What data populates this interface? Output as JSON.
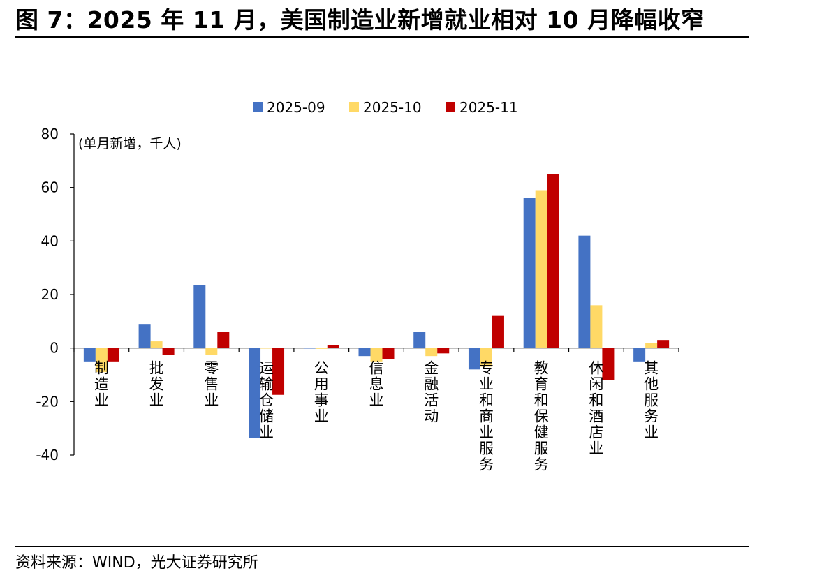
{
  "figure": {
    "title": "图 7：2025 年 11 月，美国制造业新增就业相对 10 月降幅收窄",
    "source": "资料来源：WIND，光大证券研究所"
  },
  "chart_data": {
    "type": "bar",
    "title": "",
    "ylabel": "(单月新增，千人)",
    "xlabel": "",
    "ylim": [
      -40,
      80
    ],
    "yticks": [
      80,
      60,
      40,
      20,
      0,
      -20,
      -40
    ],
    "grid": false,
    "legend_position": "top-center",
    "categories": [
      "制造业",
      "批发业",
      "零售业",
      "运输仓储业",
      "公用事业",
      "信息业",
      "金融活动",
      "专业和商业服务",
      "教育和保健服务",
      "休闲和酒店业",
      "其他服务业"
    ],
    "series": [
      {
        "name": "2025-09",
        "color": "#4472C4",
        "values": [
          -5,
          9,
          23.5,
          -33.5,
          0,
          -3,
          6,
          -8,
          56,
          42,
          -5
        ]
      },
      {
        "name": "2025-10",
        "color": "#FFD966",
        "values": [
          -9,
          2.5,
          -2.5,
          0,
          -0.3,
          -5,
          -3,
          -7,
          59,
          16,
          2
        ]
      },
      {
        "name": "2025-11",
        "color": "#C00000",
        "values": [
          -5,
          -2.5,
          6,
          -17.5,
          1,
          -4,
          -2,
          12,
          65,
          -12,
          3
        ]
      }
    ]
  }
}
